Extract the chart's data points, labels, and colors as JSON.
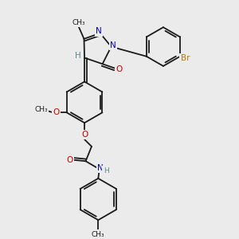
{
  "bg_color": "#ebebeb",
  "bond_color": "#1a1a1a",
  "atom_colors": {
    "N": "#0000cc",
    "O": "#cc0000",
    "Br": "#bb7700",
    "H": "#5a8a8a",
    "C": "#1a1a1a"
  },
  "figsize": [
    3.0,
    3.0
  ],
  "dpi": 100,
  "xlim": [
    0,
    10
  ],
  "ylim": [
    0,
    10
  ]
}
